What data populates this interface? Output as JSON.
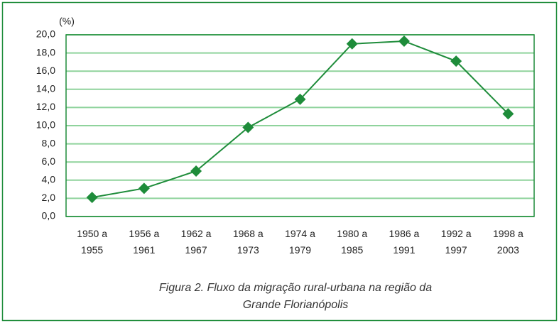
{
  "chart_data": {
    "type": "line",
    "y_unit": "(%)",
    "caption": [
      "Figura 2. Fluxo da migração rural-urbana na região da",
      "Grande Florianópolis"
    ],
    "categories": [
      "1950 a 1955",
      "1956 a 1961",
      "1962 a 1967",
      "1968 a 1973",
      "1974 a 1979",
      "1980 a 1985",
      "1986 a 1991",
      "1992 a 1997",
      "1998 a 2003"
    ],
    "values": [
      2.1,
      3.1,
      5.0,
      9.8,
      12.9,
      19.0,
      19.3,
      17.1,
      11.3
    ],
    "color": "#1e8c3a",
    "ylim": [
      0,
      20
    ],
    "yticks": [
      {
        "value": 0,
        "label": "0,0"
      },
      {
        "value": 2,
        "label": "2,0"
      },
      {
        "value": 4,
        "label": "4,0"
      },
      {
        "value": 6,
        "label": "6,0"
      },
      {
        "value": 8,
        "label": "8,0"
      },
      {
        "value": 10,
        "label": "10,0"
      },
      {
        "value": 12,
        "label": "12,0"
      },
      {
        "value": 14,
        "label": "14,0"
      },
      {
        "value": 16,
        "label": "16,0"
      },
      {
        "value": 18,
        "label": "18,0"
      },
      {
        "value": 20,
        "label": "20,0"
      }
    ],
    "grid": true
  }
}
